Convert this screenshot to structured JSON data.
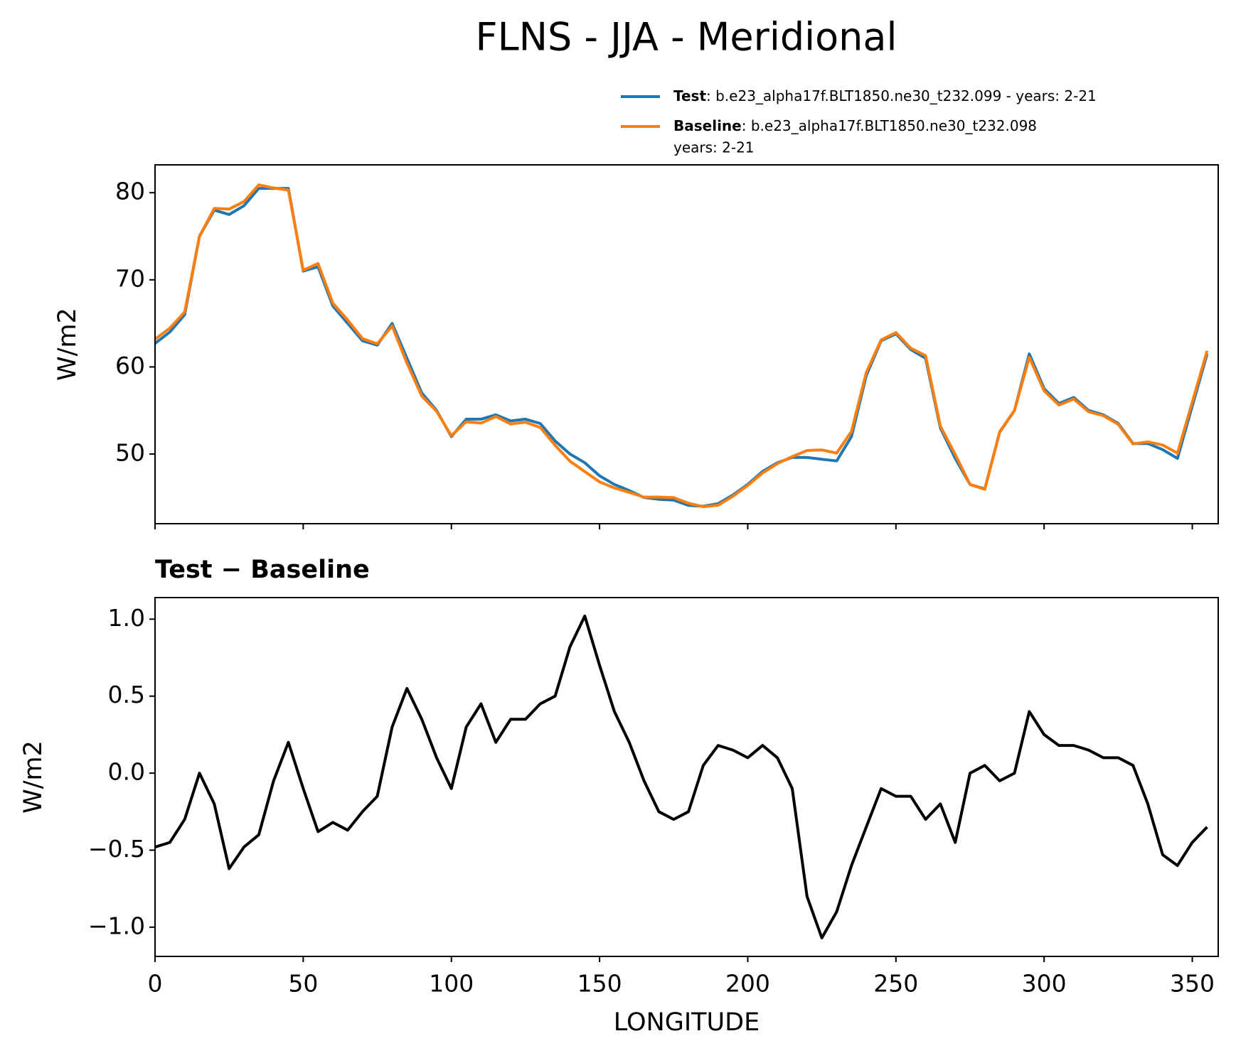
{
  "chart_data": [
    {
      "type": "line",
      "title": "FLNS - JJA - Meridional",
      "ylabel": "W/m2",
      "x": [
        0,
        5,
        10,
        15,
        20,
        25,
        30,
        35,
        40,
        45,
        50,
        55,
        60,
        65,
        70,
        75,
        80,
        85,
        90,
        95,
        100,
        105,
        110,
        115,
        120,
        125,
        130,
        135,
        140,
        145,
        150,
        155,
        160,
        165,
        170,
        175,
        180,
        185,
        190,
        195,
        200,
        205,
        210,
        215,
        220,
        225,
        230,
        235,
        240,
        245,
        250,
        255,
        260,
        265,
        270,
        275,
        280,
        285,
        290,
        295,
        300,
        305,
        310,
        315,
        320,
        325,
        330,
        335,
        340,
        345,
        350,
        355
      ],
      "series": [
        {
          "name": "Test",
          "description": [
            ": b.e23_alpha17f.BLT1850.ne30_t232.099 - years: 2-21"
          ],
          "color": "#1f77b4",
          "values": [
            62.7,
            64,
            66,
            75,
            78,
            77.5,
            78.5,
            80.5,
            80.5,
            80.5,
            71,
            71.5,
            67,
            65,
            63,
            62.5,
            65,
            61,
            57,
            55,
            52,
            54,
            54,
            54.5,
            53.8,
            54,
            53.5,
            51.5,
            50,
            49,
            47.5,
            46.5,
            45.8,
            45,
            44.8,
            44.7,
            44.1,
            44,
            44.3,
            45.3,
            46.5,
            48,
            49,
            49.6,
            49.6,
            49.4,
            49.2,
            52,
            59,
            63,
            63.8,
            62,
            61,
            53,
            49.5,
            46.5,
            46,
            52.5,
            55,
            61.5,
            57.5,
            55.8,
            56.5,
            55,
            54.5,
            53.5,
            51.2,
            51.2,
            50.5,
            49.5,
            55.5,
            61.5
          ]
        },
        {
          "name": "Baseline",
          "description": [
            ": b.e23_alpha17f.BLT1850.ne30_t232.098",
            "years: 2-21"
          ],
          "color": "#ff7f0e",
          "values": [
            63.18,
            64.45,
            66.3,
            75,
            78.2,
            78.12,
            78.98,
            80.9,
            80.55,
            80.3,
            71.1,
            71.88,
            67.32,
            65.37,
            63.25,
            62.65,
            64.7,
            60.45,
            56.65,
            54.9,
            52.1,
            53.7,
            53.55,
            54.3,
            53.45,
            53.65,
            53.05,
            51,
            49.18,
            47.98,
            46.8,
            46.1,
            45.6,
            45.05,
            45.05,
            45,
            44.35,
            43.95,
            44.12,
            45.15,
            46.4,
            47.82,
            48.9,
            49.7,
            50.4,
            50.47,
            50.1,
            52.6,
            59.35,
            63.1,
            63.95,
            62.15,
            61.3,
            53.2,
            49.95,
            46.5,
            45.95,
            52.55,
            55,
            61.1,
            57.25,
            55.62,
            56.32,
            54.85,
            54.4,
            53.4,
            51.15,
            51.4,
            51.03,
            50.1,
            55.95,
            61.85
          ]
        }
      ],
      "xlim": [
        0,
        358.75
      ],
      "xticks": [
        0,
        50,
        100,
        150,
        200,
        250,
        300,
        350
      ],
      "show_xtick_labels": false,
      "ylim": [
        42,
        83.2
      ],
      "yticks": [
        50,
        60,
        70,
        80
      ],
      "legend": "upper right"
    },
    {
      "type": "line",
      "subtitle": "Test − Baseline",
      "ylabel": "W/m2",
      "xlabel": "LONGITUDE",
      "x": [
        0,
        5,
        10,
        15,
        20,
        25,
        30,
        35,
        40,
        45,
        50,
        55,
        60,
        65,
        70,
        75,
        80,
        85,
        90,
        95,
        100,
        105,
        110,
        115,
        120,
        125,
        130,
        135,
        140,
        145,
        150,
        155,
        160,
        165,
        170,
        175,
        180,
        185,
        190,
        195,
        200,
        205,
        210,
        215,
        220,
        225,
        230,
        235,
        240,
        245,
        250,
        255,
        260,
        265,
        270,
        275,
        280,
        285,
        290,
        295,
        300,
        305,
        310,
        315,
        320,
        325,
        330,
        335,
        340,
        345,
        350,
        355
      ],
      "series": [
        {
          "color": "#000000",
          "values": [
            -0.48,
            -0.45,
            -0.3,
            0,
            -0.2,
            -0.62,
            -0.48,
            -0.4,
            -0.05,
            0.2,
            -0.1,
            -0.38,
            -0.32,
            -0.37,
            -0.25,
            -0.15,
            0.3,
            0.55,
            0.35,
            0.1,
            -0.1,
            0.3,
            0.45,
            0.2,
            0.35,
            0.35,
            0.45,
            0.5,
            0.82,
            1.02,
            0.7,
            0.4,
            0.2,
            -0.05,
            -0.25,
            -0.3,
            -0.25,
            0.05,
            0.18,
            0.15,
            0.1,
            0.18,
            0.1,
            -0.1,
            -0.8,
            -1.07,
            -0.9,
            -0.6,
            -0.35,
            -0.1,
            -0.15,
            -0.15,
            -0.3,
            -0.2,
            -0.45,
            0,
            0.05,
            -0.05,
            0,
            0.4,
            0.25,
            0.18,
            0.18,
            0.15,
            0.1,
            0.1,
            0.05,
            -0.2,
            -0.53,
            -0.6,
            -0.45,
            -0.35
          ]
        }
      ],
      "xlim": [
        0,
        358.75
      ],
      "xticks": [
        0,
        50,
        100,
        150,
        200,
        250,
        300,
        350
      ],
      "show_xtick_labels": true,
      "ylim": [
        -1.19,
        1.14
      ],
      "yticks": [
        {
          "value": -1.0,
          "label": "−1.0"
        },
        {
          "value": -0.5,
          "label": "−0.5"
        },
        {
          "value": 0,
          "label": "0.0"
        },
        {
          "value": 0.5,
          "label": "0.5"
        },
        {
          "value": 1.0,
          "label": "1.0"
        }
      ]
    }
  ]
}
